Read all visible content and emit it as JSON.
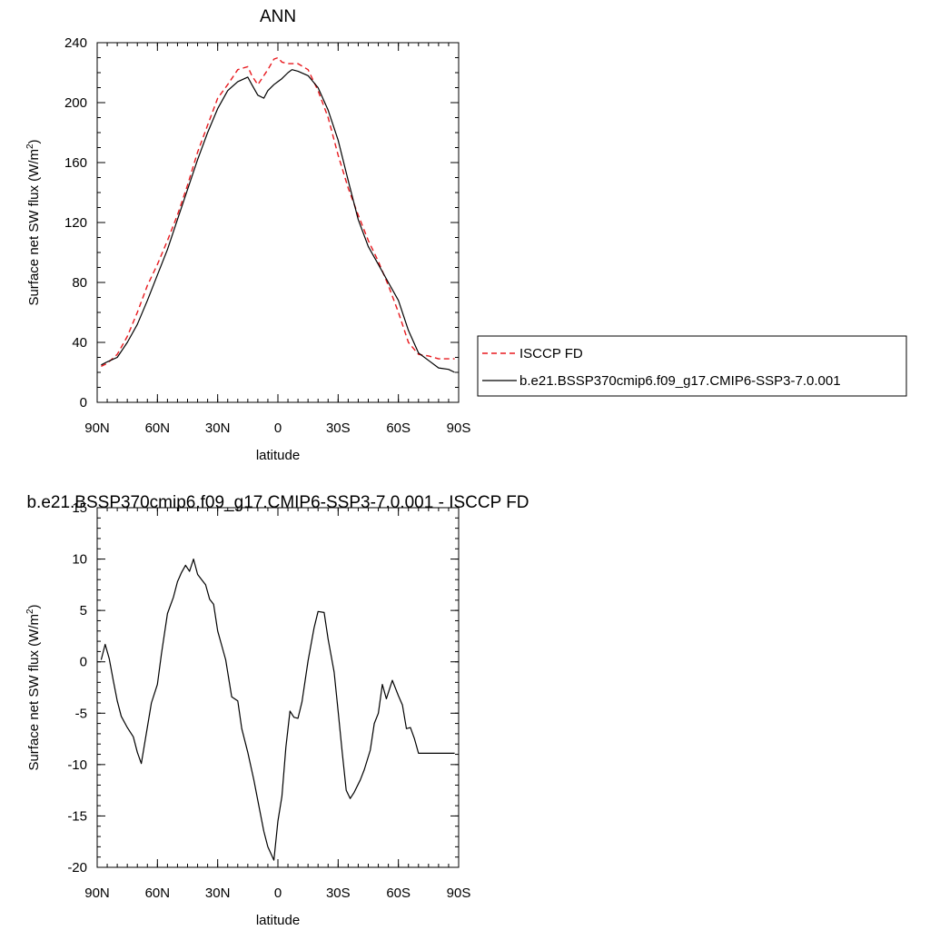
{
  "chart_data": [
    {
      "type": "line",
      "title": "ANN",
      "xlabel": "latitude",
      "ylabel_prefix": "Surface net SW flux (W/m",
      "ylabel_sup": "2",
      "ylabel_suffix": ")",
      "xlim": [
        90,
        -90
      ],
      "ylim": [
        0,
        240
      ],
      "x_ticks": [
        90,
        60,
        30,
        0,
        -30,
        -60,
        -90
      ],
      "x_tick_labels": [
        "90N",
        "60N",
        "30N",
        "0",
        "30S",
        "60S",
        "90S"
      ],
      "y_ticks": [
        0,
        40,
        80,
        120,
        160,
        200,
        240
      ],
      "y_tick_labels": [
        "0",
        "40",
        "80",
        "120",
        "160",
        "200",
        "240"
      ],
      "legend": {
        "placement": "right",
        "entries": [
          "ISCCP FD",
          "b.e21.BSSP370cmip6.f09_g17.CMIP6-SSP3-7.0.001"
        ]
      },
      "series": [
        {
          "name": "ISCCP FD",
          "color": "#e8191e",
          "dash": true,
          "x": [
            88,
            85,
            80,
            75,
            70,
            65,
            60,
            55,
            50,
            45,
            40,
            35,
            30,
            25,
            20,
            15,
            13,
            10,
            5,
            2,
            0,
            -2,
            -5,
            -10,
            -15,
            -20,
            -25,
            -30,
            -35,
            -40,
            -45,
            -50,
            -55,
            -60,
            -65,
            -70,
            -75,
            -80,
            -85,
            -88
          ],
          "y": [
            24,
            26,
            32,
            44,
            60,
            78,
            92,
            108,
            125,
            145,
            167,
            185,
            203,
            212,
            222,
            224,
            218,
            212,
            222,
            229,
            230,
            227,
            226,
            226,
            222,
            208,
            190,
            165,
            143,
            125,
            108,
            94,
            78,
            60,
            40,
            32,
            31,
            29,
            29,
            29
          ]
        },
        {
          "name": "b.e21.BSSP370cmip6.f09_g17.CMIP6-SSP3-7.0.001",
          "color": "#000000",
          "dash": false,
          "x": [
            88,
            85,
            80,
            75,
            70,
            65,
            60,
            55,
            50,
            45,
            40,
            35,
            30,
            25,
            20,
            15,
            13,
            10,
            7,
            5,
            2,
            0,
            -2,
            -5,
            -7,
            -10,
            -15,
            -20,
            -25,
            -30,
            -35,
            -40,
            -45,
            -50,
            -55,
            -60,
            -65,
            -70,
            -75,
            -80,
            -85,
            -88
          ],
          "y": [
            25,
            27,
            30,
            40,
            52,
            68,
            85,
            102,
            122,
            142,
            162,
            180,
            196,
            208,
            214,
            217,
            212,
            205,
            203,
            208,
            212,
            214,
            216,
            220,
            222,
            221,
            218,
            210,
            195,
            175,
            148,
            122,
            104,
            92,
            80,
            68,
            48,
            33,
            28,
            23,
            22,
            20
          ]
        }
      ]
    },
    {
      "type": "line",
      "title": "b.e21.BSSP370cmip6.f09_g17.CMIP6-SSP3-7.0.001 - ISCCP FD",
      "xlabel": "latitude",
      "ylabel_prefix": "Surface net SW flux (W/m",
      "ylabel_sup": "2",
      "ylabel_suffix": ")",
      "xlim": [
        90,
        -90
      ],
      "ylim": [
        -20,
        15
      ],
      "x_ticks": [
        90,
        60,
        30,
        0,
        -30,
        -60,
        -90
      ],
      "x_tick_labels": [
        "90N",
        "60N",
        "30N",
        "0",
        "30S",
        "60S",
        "90S"
      ],
      "y_ticks": [
        -20,
        -15,
        -10,
        -5,
        0,
        5,
        10,
        15
      ],
      "y_tick_labels": [
        "-20",
        "-15",
        "-10",
        "-5",
        "0",
        "5",
        "10",
        "15"
      ],
      "series": [
        {
          "color": "#000000",
          "dash": false,
          "x": [
            88,
            86,
            84,
            82,
            80,
            78,
            75,
            72,
            70,
            68,
            66,
            63,
            60,
            58,
            55,
            52,
            50,
            48,
            46,
            44,
            42,
            40,
            38,
            36,
            34,
            32,
            30,
            28,
            26,
            23,
            20,
            18,
            15,
            12,
            10,
            7,
            5,
            2,
            0,
            -2,
            -4,
            -6,
            -8,
            -10,
            -12,
            -15,
            -18,
            -20,
            -23,
            -25,
            -28,
            -30,
            -32,
            -34,
            -36,
            -38,
            -41,
            -43,
            -46,
            -48,
            -50,
            -52,
            -54,
            -57,
            -60,
            -62,
            -64,
            -66,
            -68,
            -70,
            -72,
            -74,
            -77,
            -79,
            -81,
            -83,
            -86,
            -88
          ],
          "y": [
            0.2,
            1.7,
            0.3,
            -1.8,
            -3.8,
            -5.3,
            -6.4,
            -7.3,
            -8.8,
            -9.9,
            -7.5,
            -4.0,
            -2.2,
            0.8,
            4.7,
            6.3,
            7.8,
            8.7,
            9.4,
            8.8,
            10.0,
            8.5,
            8.0,
            7.5,
            6.1,
            5.6,
            3.0,
            1.6,
            0.2,
            -3.4,
            -3.8,
            -6.5,
            -8.8,
            -11.5,
            -13.5,
            -16.5,
            -18.0,
            -19.3,
            -15.5,
            -13.1,
            -8.3,
            -4.8,
            -5.4,
            -5.5,
            -3.9,
            0.1,
            3.3,
            4.9,
            4.8,
            2.2,
            -1.0,
            -4.8,
            -8.8,
            -12.5,
            -13.3,
            -12.7,
            -11.5,
            -10.5,
            -8.6,
            -6.0,
            -5.0,
            -2.2,
            -3.6,
            -1.8,
            -3.3,
            -4.2,
            -6.5,
            -6.4,
            -7.5,
            -8.9,
            -8.9,
            -8.9,
            -8.9,
            -8.9,
            -8.9,
            -8.9,
            -8.9,
            -8.9
          ]
        }
      ]
    }
  ]
}
